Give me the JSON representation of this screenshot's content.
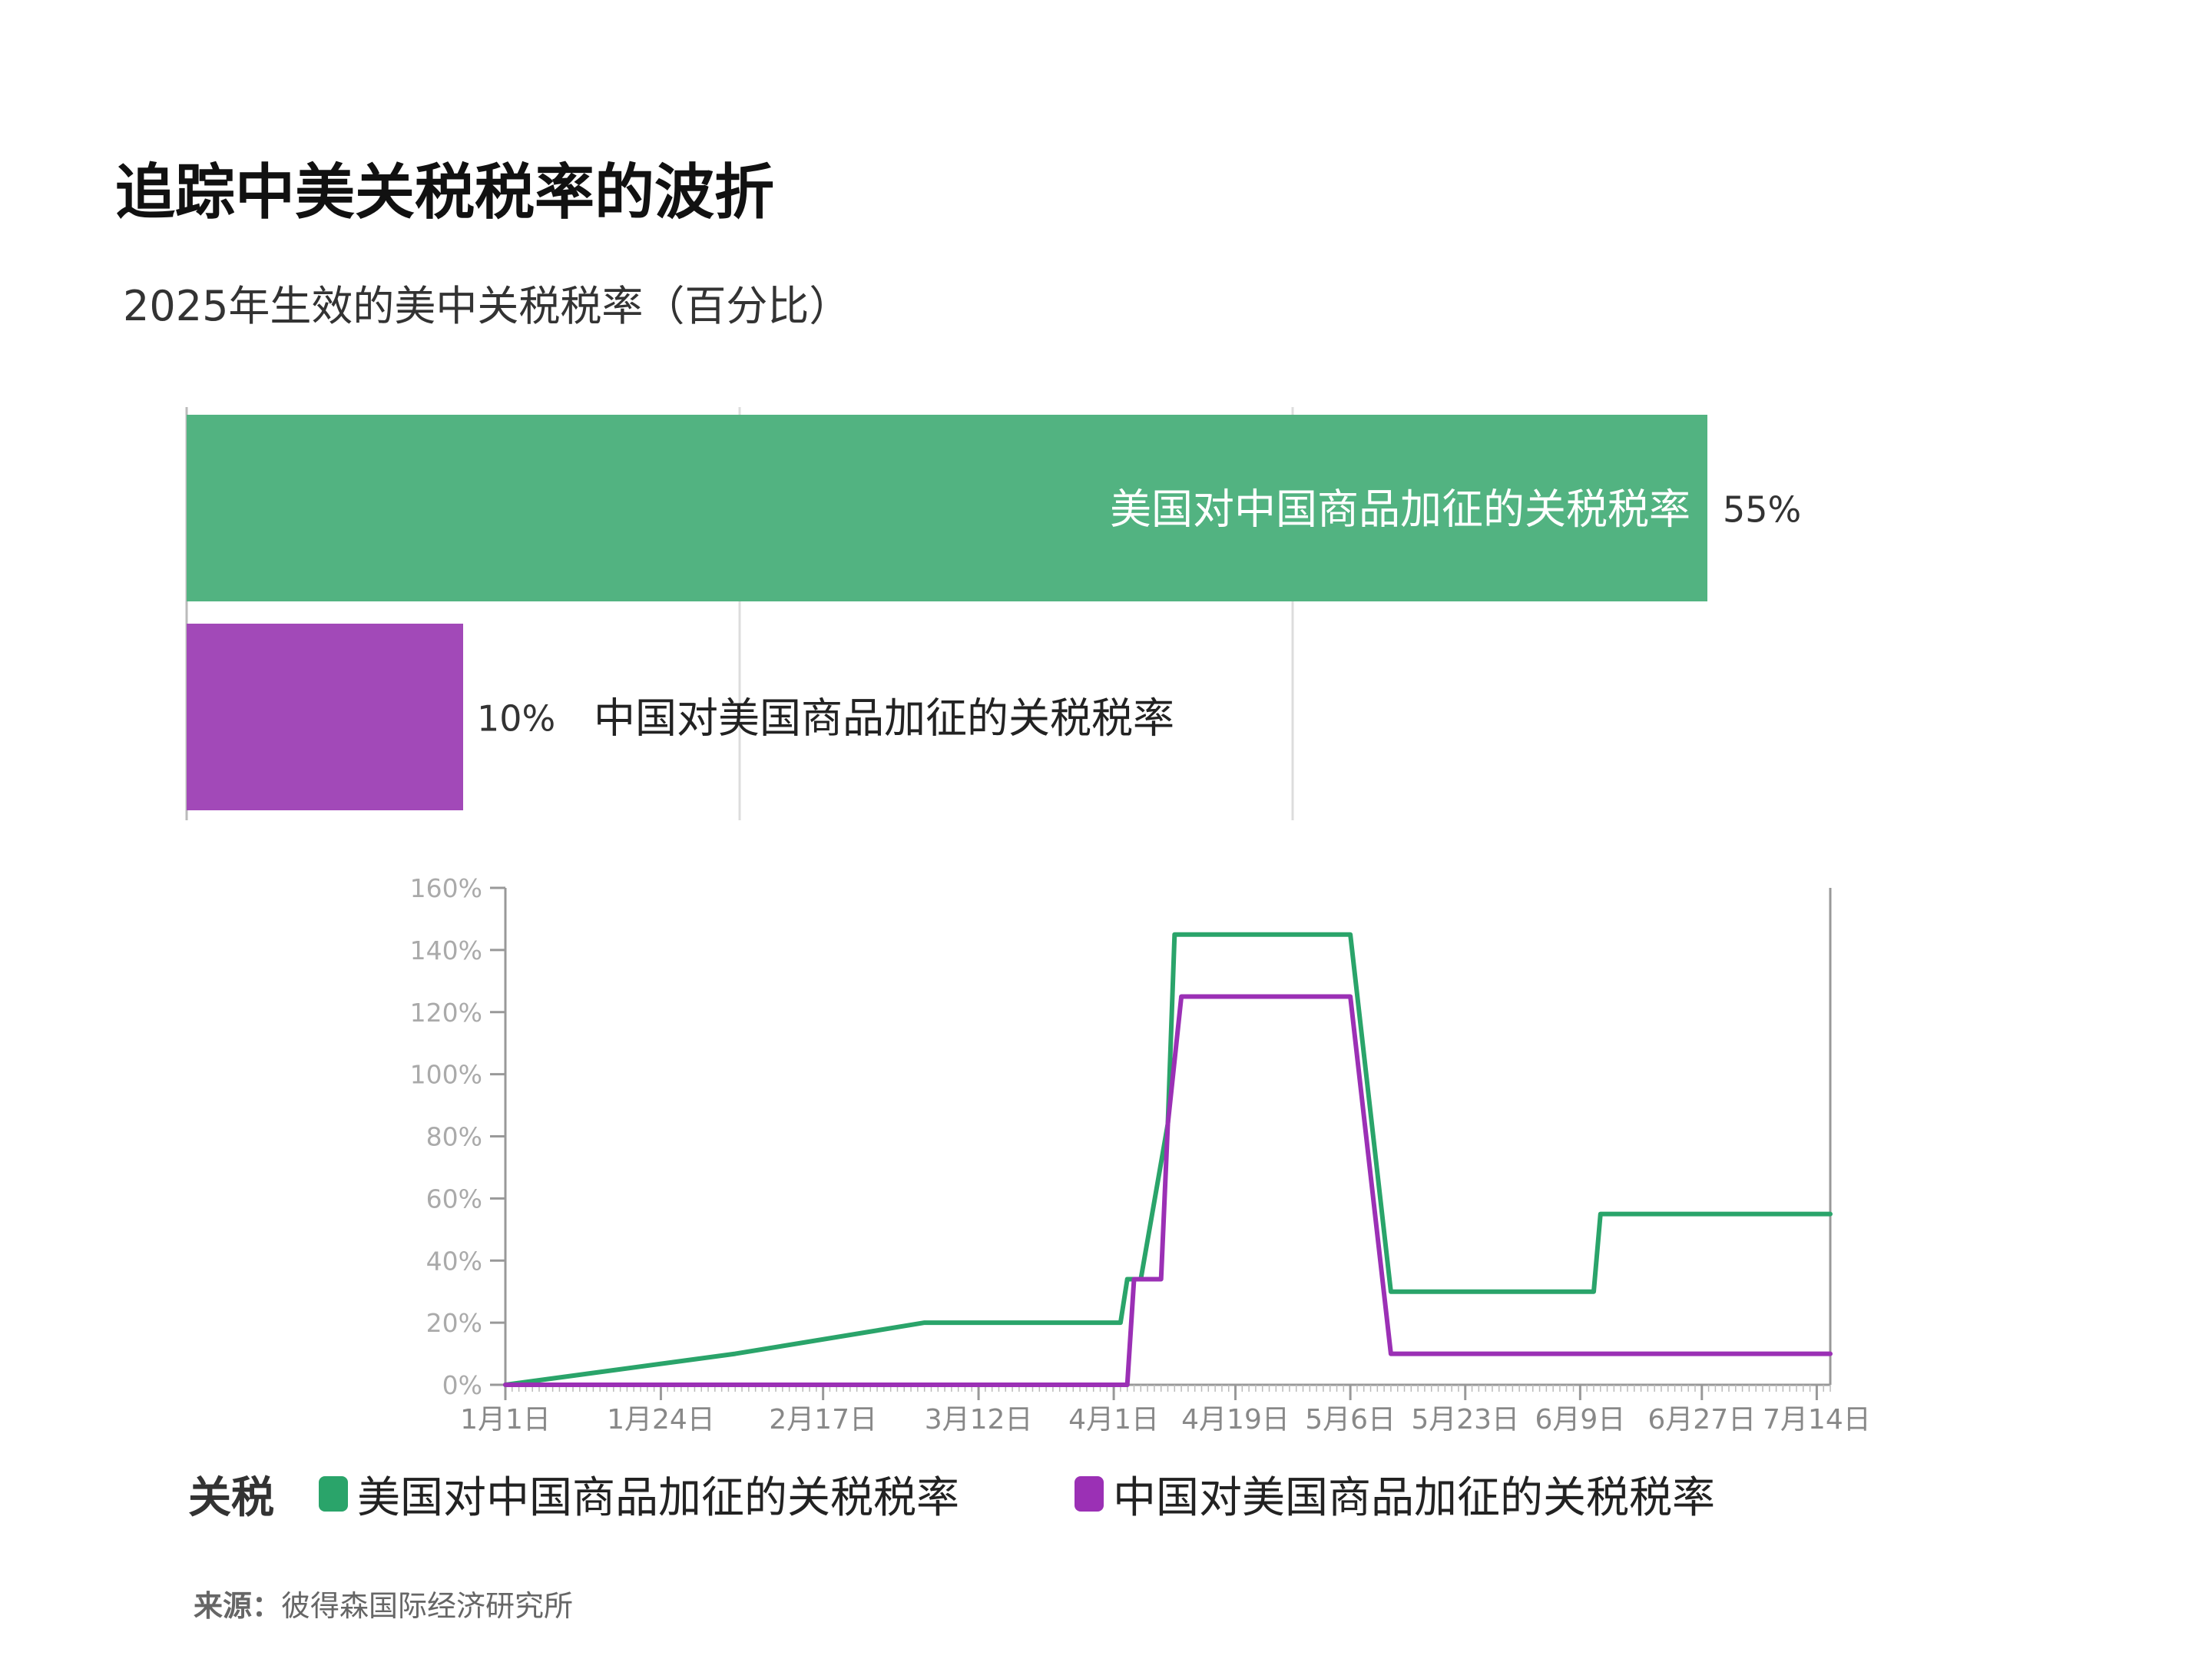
{
  "header": {
    "title": "追踪中美关税税率的波折",
    "subtitle": "2025年生效的美中关税税率（百分比）"
  },
  "legend": {
    "title": "关税",
    "items": [
      {
        "label": "美国对中国商品加征的关税税率",
        "color": "#2aa46a"
      },
      {
        "label": "中国对美国商品加征的关税税率",
        "color": "#9b30b5"
      }
    ]
  },
  "source": {
    "label": "来源：",
    "text": "彼得森国际经济研究所"
  },
  "chart_data": [
    {
      "type": "bar",
      "orientation": "horizontal",
      "title": "2025年生效的美中关税税率（百分比）",
      "categories": [
        "美国对中国商品加征的关税税率",
        "中国对美国商品加征的关税税率"
      ],
      "values": [
        55,
        10
      ],
      "value_labels": [
        "55%",
        "10%"
      ],
      "colors": [
        "#52b381",
        "#a249b8"
      ],
      "xlim": [
        0,
        60
      ],
      "grid_values": [
        0,
        20,
        40
      ]
    },
    {
      "type": "line",
      "xlim": [
        "2025-01-01",
        "2025-07-16"
      ],
      "ylim": [
        0,
        160
      ],
      "yticks": [
        "0%",
        "20%",
        "40%",
        "60%",
        "80%",
        "100%",
        "120%",
        "140%",
        "160%"
      ],
      "xticks": [
        {
          "label": "1月1日",
          "date": "2025-01-01"
        },
        {
          "label": "1月24日",
          "date": "2025-01-24"
        },
        {
          "label": "2月17日",
          "date": "2025-02-17"
        },
        {
          "label": "3月12日",
          "date": "2025-03-12"
        },
        {
          "label": "4月1日",
          "date": "2025-04-01"
        },
        {
          "label": "4月19日",
          "date": "2025-04-19"
        },
        {
          "label": "5月6日",
          "date": "2025-05-06"
        },
        {
          "label": "5月23日",
          "date": "2025-05-23"
        },
        {
          "label": "6月9日",
          "date": "2025-06-09"
        },
        {
          "label": "6月27日",
          "date": "2025-06-27"
        },
        {
          "label": "7月14日",
          "date": "2025-07-14"
        }
      ],
      "series": [
        {
          "name": "美国对中国商品加征的关税税率",
          "color": "#2aa46a",
          "points": [
            [
              "2025-01-01",
              0
            ],
            [
              "2025-02-04",
              10
            ],
            [
              "2025-03-04",
              20
            ],
            [
              "2025-04-02",
              20
            ],
            [
              "2025-04-03",
              34
            ],
            [
              "2025-04-05",
              34
            ],
            [
              "2025-04-09",
              84
            ],
            [
              "2025-04-10",
              145
            ],
            [
              "2025-05-06",
              145
            ],
            [
              "2025-05-12",
              30
            ],
            [
              "2025-06-11",
              30
            ],
            [
              "2025-06-12",
              55
            ],
            [
              "2025-07-16",
              55
            ]
          ]
        },
        {
          "name": "中国对美国商品加征的关税税率",
          "color": "#9b30b5",
          "points": [
            [
              "2025-01-01",
              0
            ],
            [
              "2025-04-03",
              0
            ],
            [
              "2025-04-04",
              34
            ],
            [
              "2025-04-08",
              34
            ],
            [
              "2025-04-09",
              84
            ],
            [
              "2025-04-11",
              125
            ],
            [
              "2025-05-06",
              125
            ],
            [
              "2025-05-12",
              10
            ],
            [
              "2025-07-16",
              10
            ]
          ]
        }
      ]
    }
  ]
}
